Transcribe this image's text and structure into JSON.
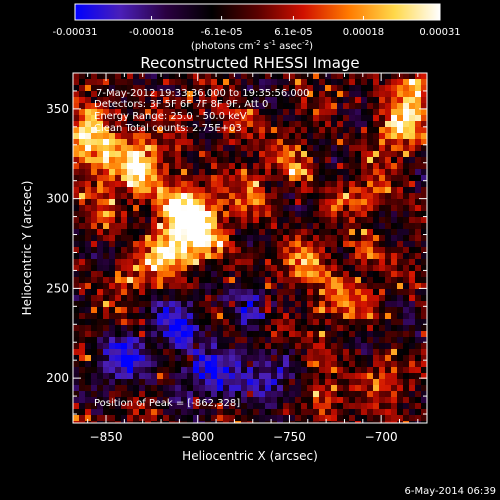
{
  "colorbar": {
    "tick_labels": [
      "-0.00031",
      "-0.00018",
      "-6.1e-05",
      "6.1e-05",
      "0.00018",
      "0.00031"
    ],
    "tick_values": [
      -0.00031,
      -0.00018,
      -6.1e-05,
      6.1e-05,
      0.00018,
      0.00031
    ],
    "range": [
      -0.00031,
      0.00031
    ],
    "unit_prefix": "(photons cm",
    "unit_exp1": "-2",
    "unit_mid": " s",
    "unit_exp2": "-1",
    "unit_end": " asec",
    "unit_exp3": "-2",
    "unit_close": ")",
    "colors": [
      "#0000ff",
      "#4a1fb8",
      "#2a0040",
      "#000000",
      "#5a0000",
      "#d01000",
      "#ff7a00",
      "#ffd84a",
      "#ffffff"
    ]
  },
  "chart_data": {
    "type": "heatmap",
    "title": "Reconstructed RHESSI Image",
    "xlabel": "Heliocentric X (arcsec)",
    "ylabel": "Heliocentric Y (arcsec)",
    "xlim": [
      -868,
      -675
    ],
    "ylim": [
      175,
      370
    ],
    "x_ticks": [
      -850,
      -800,
      -750,
      -700
    ],
    "y_ticks": [
      200,
      250,
      300,
      350
    ],
    "x_tick_labels": [
      "−850",
      "−800",
      "−750",
      "−700"
    ],
    "y_tick_labels": [
      "200",
      "250",
      "300",
      "350"
    ],
    "annotations": [
      "7-May-2012 19:33:36.000 to 19:35:56.000",
      "Detectors: 3F 5F 6F 7F 8F 9F, Att 0",
      "Energy Range: 25.0 - 50.0 keV",
      "Clean     Total counts: 2.75E+03"
    ],
    "peak_label": "Position of Peak = [-862,328]",
    "peak_position": [
      -862,
      328
    ]
  },
  "footer": {
    "timestamp": "6-May-2014 06:39"
  }
}
